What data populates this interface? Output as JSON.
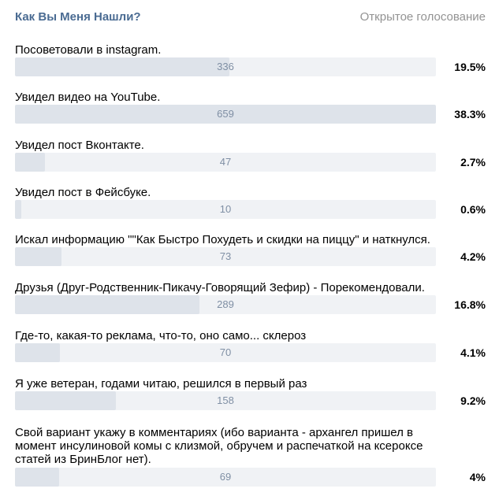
{
  "poll": {
    "title": "Как Вы Меня Нашли?",
    "type": "Открытое голосование",
    "colors": {
      "title": "#4a6b92",
      "bar_bg": "#f0f2f5",
      "bar_fill": "#dee3ea",
      "count": "#7f8fa4"
    },
    "options": [
      {
        "label": "Посоветовали в instagram.",
        "count": "336",
        "percent": "19.5%",
        "share": 0.195
      },
      {
        "label": "Увидел видео на YouTube.",
        "count": "659",
        "percent": "38.3%",
        "share": 0.383
      },
      {
        "label": "Увидел пост Вконтакте.",
        "count": "47",
        "percent": "2.7%",
        "share": 0.027
      },
      {
        "label": "Увидел пост в Фейсбуке.",
        "count": "10",
        "percent": "0.6%",
        "share": 0.006
      },
      {
        "label": "Искал информацию \"\"Как Быстро Похудеть и скидки на пиццу\" и наткнулся.",
        "count": "73",
        "percent": "4.2%",
        "share": 0.042
      },
      {
        "label": "Друзья (Друг-Родственник-Пикачу-Говорящий Зефир) - Порекомендовали.",
        "count": "289",
        "percent": "16.8%",
        "share": 0.168
      },
      {
        "label": "Где-то, какая-то реклама, что-то, оно само... склероз",
        "count": "70",
        "percent": "4.1%",
        "share": 0.041
      },
      {
        "label": "Я уже ветеран, годами читаю, решился в первый раз",
        "count": "158",
        "percent": "9.2%",
        "share": 0.092
      },
      {
        "label": "Свой вариант укажу в комментариях (ибо варианта - архангел пришел в\nмомент инсулиновой комы с клизмой, обручем и распечаткой на ксероксе\nстатей из БринБлог нет).",
        "count": "69",
        "percent": "4%",
        "share": 0.04
      }
    ]
  }
}
